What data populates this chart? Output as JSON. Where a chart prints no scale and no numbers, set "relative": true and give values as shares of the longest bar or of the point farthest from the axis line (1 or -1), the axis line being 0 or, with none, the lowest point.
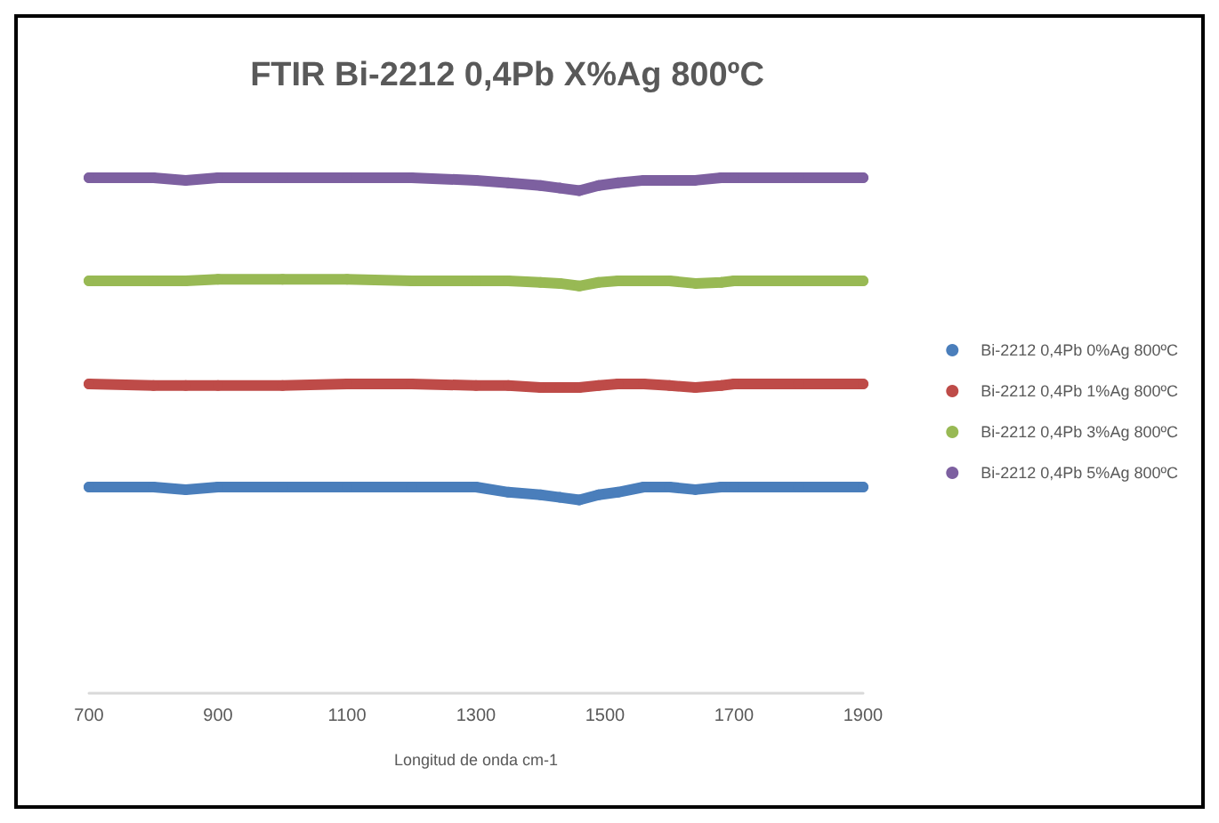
{
  "chart_data": {
    "type": "line",
    "title": "FTIR Bi-2212 0,4Pb X%Ag 800ºC",
    "xlabel": "Longitud de onda cm-1",
    "relative": true,
    "x": [
      700,
      800,
      850,
      900,
      1000,
      1100,
      1200,
      1300,
      1350,
      1400,
      1430,
      1460,
      1490,
      1520,
      1560,
      1600,
      1640,
      1680,
      1700,
      1800,
      1900
    ],
    "xlim": [
      700,
      1900
    ],
    "xticks": [
      700,
      900,
      1100,
      1300,
      1500,
      1700,
      1900
    ],
    "grid": false,
    "legend": "right",
    "marker": "circle",
    "line_style": "solid",
    "series": [
      {
        "name": "Bi-2212 0,4Pb 0%Ag 800ºC",
        "color": "#4a7ebb",
        "values": [
          0.4,
          0.4,
          0.395,
          0.4,
          0.4,
          0.4,
          0.4,
          0.4,
          0.39,
          0.385,
          0.38,
          0.375,
          0.385,
          0.39,
          0.4,
          0.4,
          0.395,
          0.4,
          0.4,
          0.4,
          0.4
        ]
      },
      {
        "name": "Bi-2212 0,4Pb 1%Ag 800ºC",
        "color": "#be4b48",
        "values": [
          0.6,
          0.597,
          0.597,
          0.597,
          0.597,
          0.6,
          0.6,
          0.597,
          0.597,
          0.593,
          0.593,
          0.593,
          0.597,
          0.6,
          0.6,
          0.597,
          0.593,
          0.597,
          0.6,
          0.6,
          0.6
        ]
      },
      {
        "name": "Bi-2212 0,4Pb 3%Ag 800ºC",
        "color": "#98b954",
        "values": [
          0.8,
          0.8,
          0.8,
          0.803,
          0.803,
          0.803,
          0.8,
          0.8,
          0.8,
          0.797,
          0.795,
          0.79,
          0.797,
          0.8,
          0.8,
          0.8,
          0.795,
          0.797,
          0.8,
          0.8,
          0.8
        ]
      },
      {
        "name": "Bi-2212 0,4Pb 5%Ag 800ºC",
        "color": "#7d60a0",
        "values": [
          1,
          1,
          0.995,
          1,
          1,
          1,
          1,
          0.995,
          0.99,
          0.985,
          0.98,
          0.975,
          0.985,
          0.99,
          0.995,
          0.995,
          0.995,
          1,
          1,
          1,
          1
        ]
      }
    ]
  }
}
